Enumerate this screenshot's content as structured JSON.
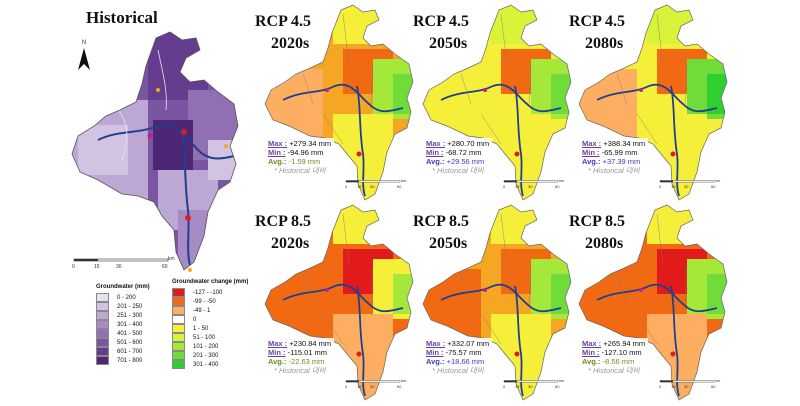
{
  "historical": {
    "title": "Historical",
    "north": "N",
    "scale_ticks": [
      "0",
      "15",
      "30",
      "60"
    ],
    "scale_unit": "km"
  },
  "legend_gw": {
    "title": "Groundwater (mm)",
    "items": [
      {
        "label": "0 - 200",
        "color": "#e8dff0"
      },
      {
        "label": "201 - 250",
        "color": "#d3c3e3"
      },
      {
        "label": "251 - 300",
        "color": "#bda7d4"
      },
      {
        "label": "301 - 400",
        "color": "#a68bc4"
      },
      {
        "label": "401 - 500",
        "color": "#906fb3"
      },
      {
        "label": "501 - 600",
        "color": "#7a55a1"
      },
      {
        "label": "601 - 700",
        "color": "#643d8e"
      },
      {
        "label": "701 - 800",
        "color": "#4d2775"
      }
    ]
  },
  "legend_change": {
    "title": "Groundwater change (mm)",
    "items": [
      {
        "label": "-127 - -100",
        "color": "#e31a1c"
      },
      {
        "label": "-99 - -50",
        "color": "#f16913"
      },
      {
        "label": "-49 - 1",
        "color": "#fdae61"
      },
      {
        "label": "0",
        "color": "#ffffff"
      },
      {
        "label": "1 - 50",
        "color": "#f5ef3a"
      },
      {
        "label": "51 - 100",
        "color": "#d9f23a"
      },
      {
        "label": "101 - 200",
        "color": "#a6e83a"
      },
      {
        "label": "201 - 300",
        "color": "#6fdc3a"
      },
      {
        "label": "301 - 400",
        "color": "#2fcf2f"
      }
    ]
  },
  "panels": [
    {
      "title1": "RCP 4.5",
      "title2": "2020s",
      "max_label": "Max :",
      "max": "+279.34 mm",
      "min_label": "Min :",
      "min": "-94.96 mm",
      "avg_label": "Avg.:",
      "avg": "-1.59 mm",
      "avg_color": "#6b8e23",
      "note": "* Historical 대비"
    },
    {
      "title1": "RCP 4.5",
      "title2": "2050s",
      "max_label": "Max :",
      "max": "+280.70 mm",
      "min_label": "Min :",
      "min": "-68.72 mm",
      "avg_label": "Avg.:",
      "avg": "+29.56 mm",
      "avg_color": "#3a3ac8",
      "note": "* Historical 대비"
    },
    {
      "title1": "RCP 4.5",
      "title2": "2080s",
      "max_label": "Max :",
      "max": "+388.34 mm",
      "min_label": "Min :",
      "min": "-65.99 mm",
      "avg_label": "Avg.:",
      "avg": "+37.39 mm",
      "avg_color": "#3a3ac8",
      "note": "* Historical 대비"
    },
    {
      "title1": "RCP 8.5",
      "title2": "2020s",
      "max_label": "Max :",
      "max": "+230.84 mm",
      "min_label": "Min :",
      "min": "-115.01 mm",
      "avg_label": "Avg.:",
      "avg": "-22.63 mm",
      "avg_color": "#6b8e23",
      "note": "* Historical 대비"
    },
    {
      "title1": "RCP 8.5",
      "title2": "2050s",
      "max_label": "Max :",
      "max": "+332.07 mm",
      "min_label": "Min :",
      "min": "-75.57 mm",
      "avg_label": "Avg.:",
      "avg": "+18.66 mm",
      "avg_color": "#3a3ac8",
      "note": "* Historical 대비"
    },
    {
      "title1": "RCP 8.5",
      "title2": "2080s",
      "max_label": "Max :",
      "max": "+265.94 mm",
      "min_label": "Min :",
      "min": "-127.10 mm",
      "avg_label": "Avg.:",
      "avg": "-8.56 mm",
      "avg_color": "#6b8e23",
      "note": "* Historical 대비"
    }
  ],
  "mini_scale": [
    "0",
    "15",
    "30",
    "60"
  ],
  "mini_scale_unit": "km"
}
